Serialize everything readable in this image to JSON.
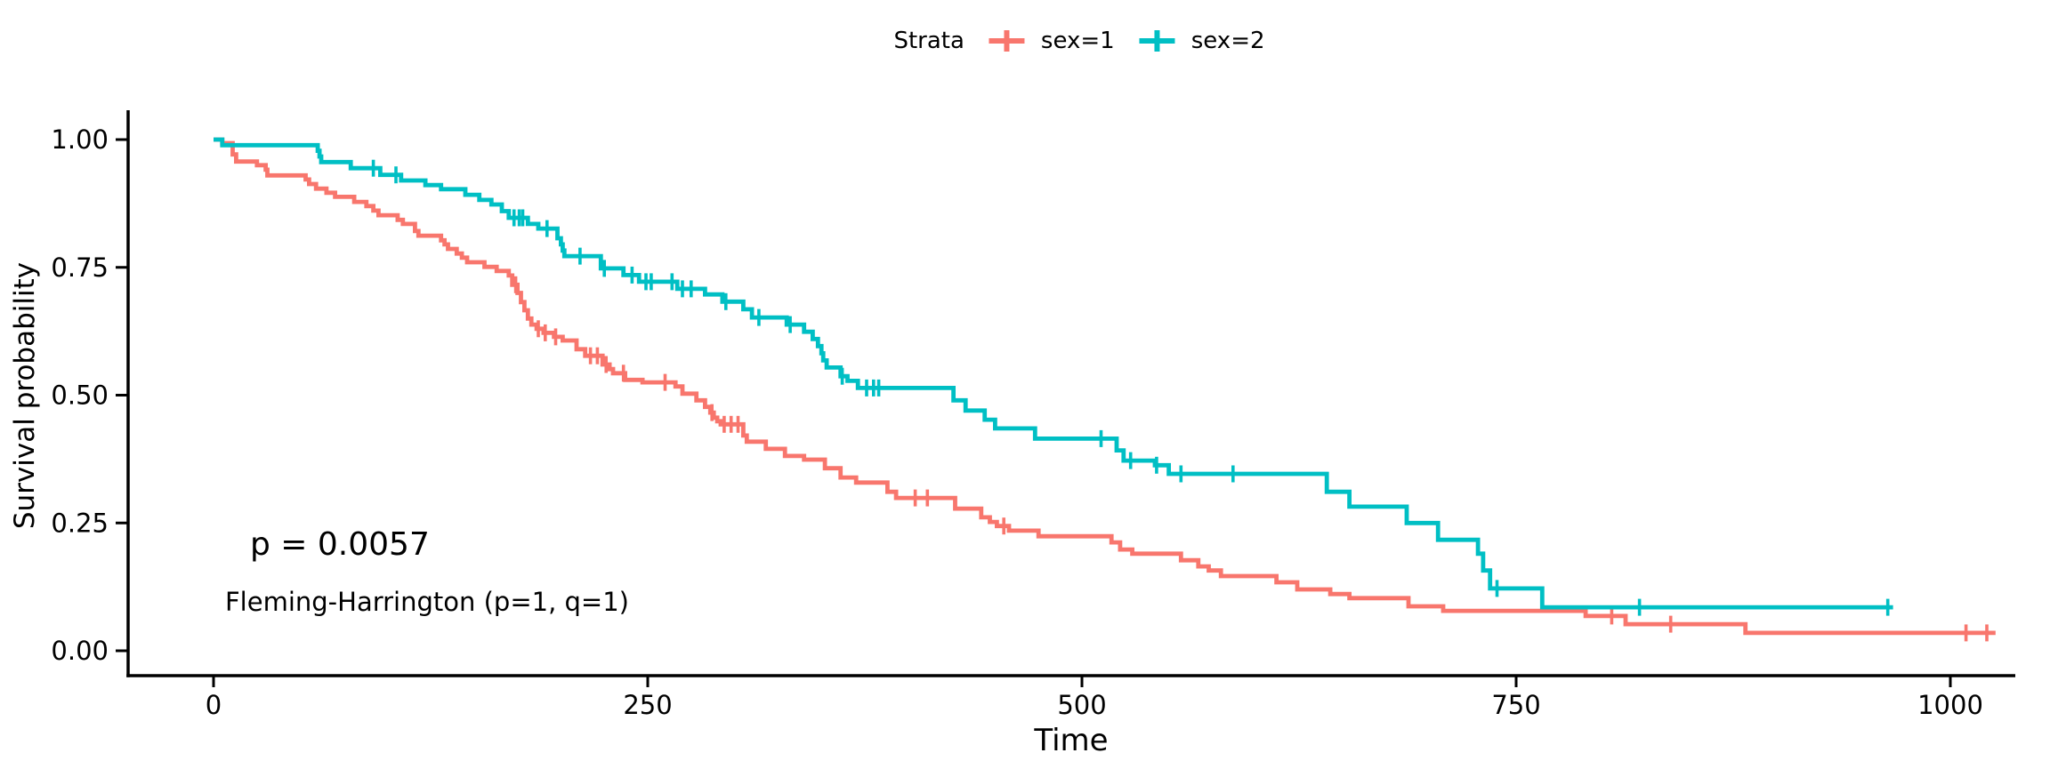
{
  "legend": {
    "title": "Strata"
  },
  "annotations": {
    "p_value": "p = 0.0057",
    "method": "Fleming-Harrington (p=1, q=1)"
  },
  "axes": {
    "x_title": "Time",
    "y_title": "Survival probability"
  },
  "chart_data": {
    "type": "line",
    "subtype": "kaplan-meier-step",
    "xlabel": "Time",
    "ylabel": "Survival probability",
    "xlim": [
      0,
      1040
    ],
    "ylim": [
      0,
      1
    ],
    "grid": false,
    "legend_position": "top-center",
    "x_ticks": [
      {
        "value": 0,
        "label": "0"
      },
      {
        "value": 250,
        "label": "250"
      },
      {
        "value": 500,
        "label": "500"
      },
      {
        "value": 750,
        "label": "750"
      },
      {
        "value": 1000,
        "label": "1000"
      }
    ],
    "y_ticks": [
      {
        "value": 0.0,
        "label": "0.00"
      },
      {
        "value": 0.25,
        "label": "0.25"
      },
      {
        "value": 0.5,
        "label": "0.50"
      },
      {
        "value": 0.75,
        "label": "0.75"
      },
      {
        "value": 1.0,
        "label": "1.00"
      }
    ],
    "series": [
      {
        "name": "sex=1",
        "color": "#F8766D",
        "steps": [
          [
            0,
            1.0
          ],
          [
            5,
            0.993
          ],
          [
            11,
            0.971
          ],
          [
            13,
            0.957
          ],
          [
            25,
            0.95
          ],
          [
            30,
            0.941
          ],
          [
            31,
            0.93
          ],
          [
            53,
            0.922
          ],
          [
            55,
            0.913
          ],
          [
            59,
            0.904
          ],
          [
            65,
            0.896
          ],
          [
            70,
            0.888
          ],
          [
            81,
            0.878
          ],
          [
            88,
            0.87
          ],
          [
            92,
            0.861
          ],
          [
            95,
            0.852
          ],
          [
            106,
            0.843
          ],
          [
            109,
            0.835
          ],
          [
            116,
            0.821
          ],
          [
            118,
            0.812
          ],
          [
            131,
            0.803
          ],
          [
            133,
            0.795
          ],
          [
            135,
            0.786
          ],
          [
            140,
            0.777
          ],
          [
            143,
            0.769
          ],
          [
            146,
            0.76
          ],
          [
            156,
            0.751
          ],
          [
            163,
            0.743
          ],
          [
            170,
            0.734
          ],
          [
            172,
            0.716
          ],
          [
            175,
            0.7
          ],
          [
            177,
            0.682
          ],
          [
            179,
            0.666
          ],
          [
            181,
            0.65
          ],
          [
            183,
            0.638
          ],
          [
            186,
            0.63
          ],
          [
            190,
            0.622
          ],
          [
            196,
            0.614
          ],
          [
            201,
            0.607
          ],
          [
            209,
            0.59
          ],
          [
            214,
            0.577
          ],
          [
            224,
            0.56
          ],
          [
            228,
            0.551
          ],
          [
            230,
            0.543
          ],
          [
            237,
            0.53
          ],
          [
            247,
            0.525
          ],
          [
            266,
            0.517
          ],
          [
            270,
            0.503
          ],
          [
            278,
            0.49
          ],
          [
            283,
            0.477
          ],
          [
            286,
            0.466
          ],
          [
            288,
            0.456
          ],
          [
            290,
            0.449
          ],
          [
            292,
            0.443
          ],
          [
            305,
            0.421
          ],
          [
            307,
            0.409
          ],
          [
            318,
            0.395
          ],
          [
            329,
            0.381
          ],
          [
            340,
            0.374
          ],
          [
            352,
            0.357
          ],
          [
            361,
            0.339
          ],
          [
            370,
            0.329
          ],
          [
            388,
            0.311
          ],
          [
            393,
            0.299
          ],
          [
            427,
            0.278
          ],
          [
            442,
            0.261
          ],
          [
            447,
            0.252
          ],
          [
            451,
            0.244
          ],
          [
            458,
            0.235
          ],
          [
            475,
            0.224
          ],
          [
            517,
            0.212
          ],
          [
            522,
            0.198
          ],
          [
            529,
            0.19
          ],
          [
            557,
            0.177
          ],
          [
            567,
            0.165
          ],
          [
            573,
            0.157
          ],
          [
            580,
            0.146
          ],
          [
            612,
            0.134
          ],
          [
            624,
            0.12
          ],
          [
            643,
            0.111
          ],
          [
            654,
            0.103
          ],
          [
            688,
            0.087
          ],
          [
            708,
            0.078
          ],
          [
            790,
            0.068
          ],
          [
            813,
            0.052
          ],
          [
            882,
            0.035
          ],
          [
            1026,
            0.035
          ]
        ],
        "censors": [
          [
            174,
            0.716
          ],
          [
            187,
            0.63
          ],
          [
            191,
            0.622
          ],
          [
            197,
            0.614
          ],
          [
            217,
            0.577
          ],
          [
            221,
            0.577
          ],
          [
            226,
            0.56
          ],
          [
            236,
            0.543
          ],
          [
            260,
            0.525
          ],
          [
            287,
            0.466
          ],
          [
            294,
            0.443
          ],
          [
            298,
            0.443
          ],
          [
            302,
            0.443
          ],
          [
            404,
            0.299
          ],
          [
            411,
            0.299
          ],
          [
            455,
            0.244
          ],
          [
            805,
            0.068
          ],
          [
            839,
            0.052
          ],
          [
            1009,
            0.035
          ],
          [
            1021,
            0.035
          ]
        ]
      },
      {
        "name": "sex=2",
        "color": "#00BFC4",
        "steps": [
          [
            0,
            1.0
          ],
          [
            5,
            0.989
          ],
          [
            60,
            0.978
          ],
          [
            61,
            0.967
          ],
          [
            62,
            0.956
          ],
          [
            79,
            0.944
          ],
          [
            96,
            0.931
          ],
          [
            108,
            0.92
          ],
          [
            122,
            0.911
          ],
          [
            131,
            0.903
          ],
          [
            145,
            0.892
          ],
          [
            153,
            0.882
          ],
          [
            160,
            0.873
          ],
          [
            166,
            0.86
          ],
          [
            170,
            0.847
          ],
          [
            181,
            0.835
          ],
          [
            187,
            0.826
          ],
          [
            198,
            0.807
          ],
          [
            200,
            0.795
          ],
          [
            201,
            0.783
          ],
          [
            202,
            0.772
          ],
          [
            223,
            0.748
          ],
          [
            236,
            0.735
          ],
          [
            245,
            0.722
          ],
          [
            267,
            0.708
          ],
          [
            283,
            0.697
          ],
          [
            293,
            0.683
          ],
          [
            305,
            0.668
          ],
          [
            310,
            0.652
          ],
          [
            330,
            0.638
          ],
          [
            340,
            0.624
          ],
          [
            345,
            0.61
          ],
          [
            348,
            0.596
          ],
          [
            350,
            0.582
          ],
          [
            351,
            0.568
          ],
          [
            353,
            0.554
          ],
          [
            361,
            0.537
          ],
          [
            365,
            0.528
          ],
          [
            371,
            0.514
          ],
          [
            426,
            0.49
          ],
          [
            433,
            0.47
          ],
          [
            444,
            0.452
          ],
          [
            450,
            0.435
          ],
          [
            473,
            0.415
          ],
          [
            520,
            0.392
          ],
          [
            524,
            0.372
          ],
          [
            542,
            0.363
          ],
          [
            550,
            0.346
          ],
          [
            641,
            0.311
          ],
          [
            654,
            0.282
          ],
          [
            687,
            0.25
          ],
          [
            705,
            0.217
          ],
          [
            728,
            0.19
          ],
          [
            731,
            0.157
          ],
          [
            735,
            0.122
          ],
          [
            765,
            0.085
          ],
          [
            967,
            0.085
          ]
        ],
        "censors": [
          [
            92,
            0.944
          ],
          [
            105,
            0.931
          ],
          [
            173,
            0.847
          ],
          [
            176,
            0.847
          ],
          [
            178,
            0.847
          ],
          [
            192,
            0.826
          ],
          [
            211,
            0.772
          ],
          [
            225,
            0.748
          ],
          [
            241,
            0.735
          ],
          [
            249,
            0.722
          ],
          [
            252,
            0.722
          ],
          [
            264,
            0.722
          ],
          [
            270,
            0.708
          ],
          [
            275,
            0.708
          ],
          [
            295,
            0.683
          ],
          [
            314,
            0.652
          ],
          [
            332,
            0.638
          ],
          [
            362,
            0.537
          ],
          [
            376,
            0.514
          ],
          [
            380,
            0.514
          ],
          [
            383,
            0.514
          ],
          [
            511,
            0.415
          ],
          [
            528,
            0.372
          ],
          [
            543,
            0.363
          ],
          [
            557,
            0.346
          ],
          [
            587,
            0.346
          ],
          [
            739,
            0.122
          ],
          [
            821,
            0.085
          ],
          [
            964,
            0.085
          ]
        ]
      }
    ]
  }
}
